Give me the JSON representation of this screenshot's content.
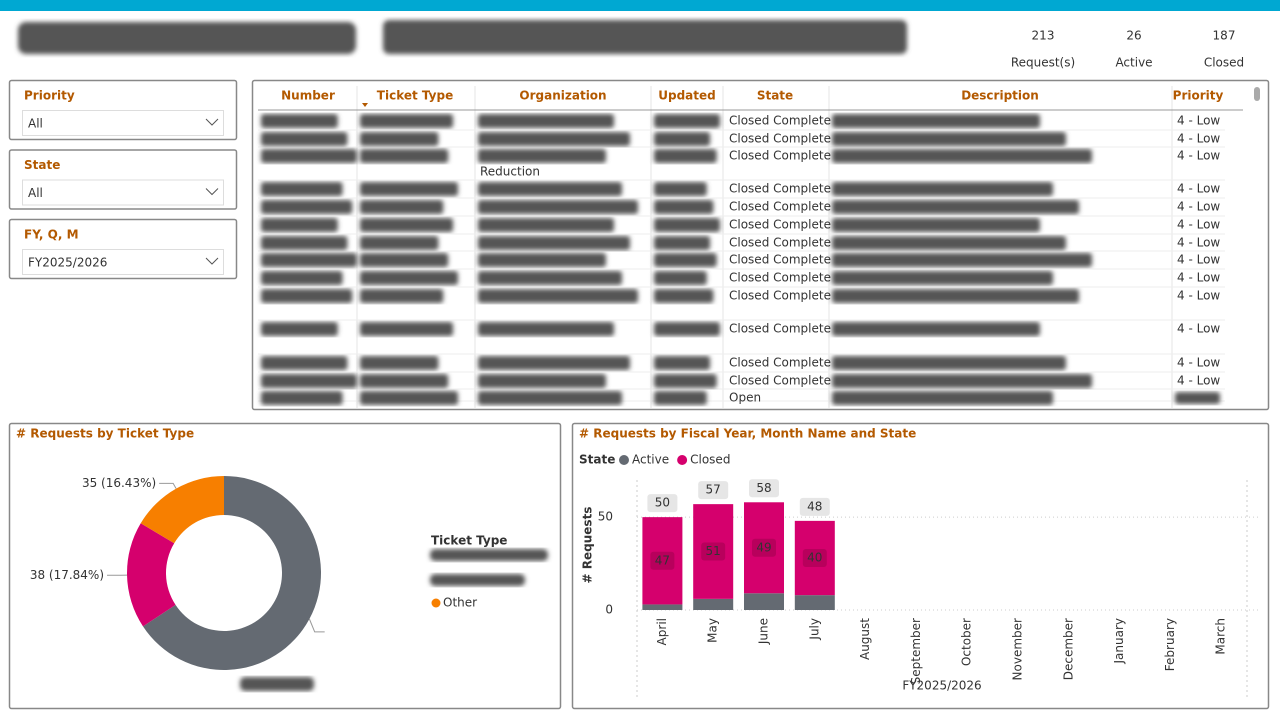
{
  "header": {
    "kpis": [
      {
        "value": 213,
        "label": "Request(s)"
      },
      {
        "value": 26,
        "label": "Active"
      },
      {
        "value": 187,
        "label": "Closed"
      }
    ]
  },
  "slicers": [
    {
      "title": "Priority",
      "selection": "All"
    },
    {
      "title": "State",
      "selection": "All"
    },
    {
      "title": "FY, Q, M",
      "selection": "FY2025/2026"
    }
  ],
  "table": {
    "columns": [
      "Number",
      "Ticket Type",
      "Organization",
      "Updated",
      "State",
      "Description",
      "Priority"
    ],
    "rows": [
      {
        "state": "Closed Complete",
        "priority": "4 - Low"
      },
      {
        "state": "Closed Complete",
        "priority": "4 - Low"
      },
      {
        "state": "Closed Complete",
        "priority": "4 - Low",
        "organization": "Reduction"
      },
      {
        "state": "Closed Complete",
        "priority": "4 - Low"
      },
      {
        "state": "Closed Complete",
        "priority": "4 - Low"
      },
      {
        "state": "Closed Complete",
        "priority": "4 - Low"
      },
      {
        "state": "Closed Complete",
        "priority": "4 - Low"
      },
      {
        "state": "Closed Complete",
        "priority": "4 - Low"
      },
      {
        "state": "Closed Complete",
        "priority": "4 - Low"
      },
      {
        "state": "Closed Complete",
        "priority": "4 - Low"
      },
      {
        "state": "Closed Complete",
        "priority": "4 - Low"
      },
      {
        "state": "Closed Complete",
        "priority": "4 - Low"
      },
      {
        "state": "Closed Complete",
        "priority": "4 - Low"
      },
      {
        "state": "Open"
      }
    ]
  },
  "donut_chart": {
    "type": "pie",
    "title": "# Requests by Ticket Type",
    "legend_title": "Ticket Type",
    "categories": [
      null,
      null,
      "Other"
    ],
    "values": [
      140,
      38,
      35
    ],
    "value_labels": [
      null,
      "38 (17.84%)",
      "35 (16.43%)"
    ],
    "colors": [
      "#646a72",
      "#d5006d",
      "#f77f00"
    ]
  },
  "bar_chart": {
    "type": "bar",
    "stacked": true,
    "title": "# Requests by Fiscal Year, Month Name and State",
    "legend_title": "State",
    "x_label": "FY2025/2026",
    "y_label": "# Requests",
    "categories": [
      "April",
      "May",
      "June",
      "July",
      "August",
      "September",
      "October",
      "November",
      "December",
      "January",
      "February",
      "March"
    ],
    "series": [
      {
        "name": "Active",
        "color": "#646a72",
        "values": [
          3,
          6,
          9,
          8,
          null,
          null,
          null,
          null,
          null,
          null,
          null,
          null
        ]
      },
      {
        "name": "Closed",
        "color": "#d5006d",
        "values": [
          47,
          51,
          49,
          40,
          null,
          null,
          null,
          null,
          null,
          null,
          null,
          null
        ]
      }
    ],
    "totals": [
      50,
      57,
      58,
      48,
      null,
      null,
      null,
      null,
      null,
      null,
      null,
      null
    ],
    "ylim": [
      0,
      70
    ],
    "yticks": [
      0,
      50
    ],
    "grid": true
  }
}
